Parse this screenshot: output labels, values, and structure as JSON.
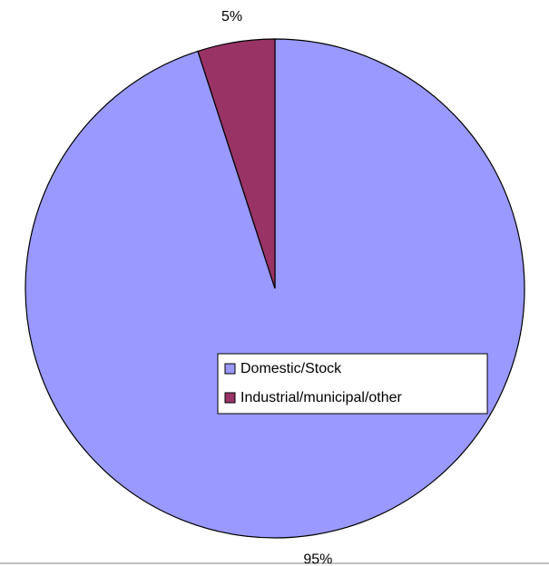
{
  "chart_data": {
    "type": "pie",
    "categories": [
      "Domestic/Stock",
      "Industrial/municipal/other"
    ],
    "values": [
      95,
      5
    ],
    "value_labels": [
      "95%",
      "5%"
    ],
    "colors": [
      "#9999ff",
      "#993366"
    ],
    "legend": "right"
  }
}
